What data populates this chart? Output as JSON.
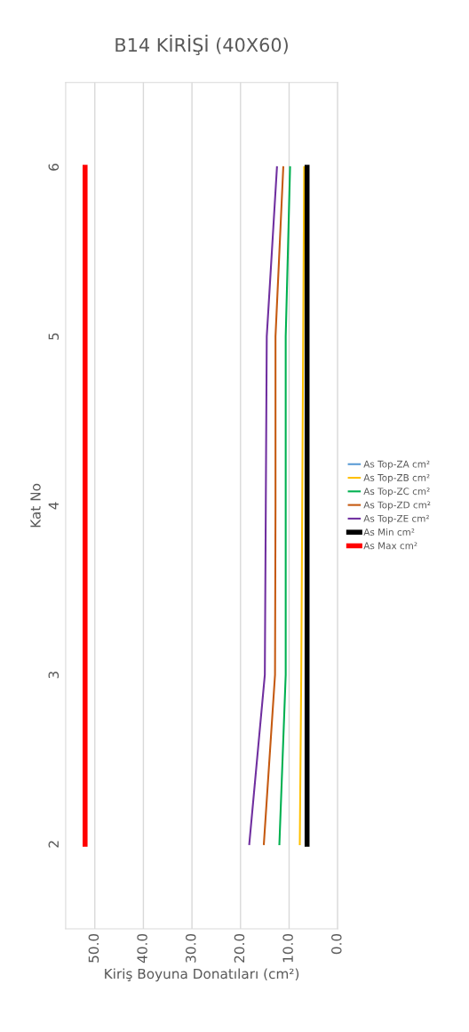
{
  "chart_data": {
    "type": "line",
    "title": "B14 KİRİŞİ (40X60)",
    "xlabel": "Kiriş Boyuna Donatıları (cm²)",
    "ylabel": "Kat No",
    "orientation": "horizontal",
    "categories": [
      "6",
      "5",
      "4",
      "3",
      "2"
    ],
    "series": [
      {
        "name": "As Top-ZA cm²",
        "color": "#5b9bd5",
        "values": [
          null,
          null,
          null,
          null,
          null
        ]
      },
      {
        "name": "As Top-ZB cm²",
        "color": "#ffc000",
        "values": [
          6.9,
          7.1,
          7.3,
          7.5,
          7.8
        ]
      },
      {
        "name": "As Top-ZC cm²",
        "color": "#00b050",
        "values": [
          9.8,
          10.7,
          10.7,
          10.7,
          12.0
        ]
      },
      {
        "name": "As Top-ZD cm²",
        "color": "#c55a11",
        "values": [
          11.2,
          12.8,
          12.8,
          12.9,
          15.2
        ]
      },
      {
        "name": "As Top-ZE cm²",
        "color": "#7030a0",
        "values": [
          12.5,
          14.6,
          14.8,
          15.0,
          18.2
        ]
      },
      {
        "name": "As Min cm²",
        "color": "#000000",
        "values": [
          6.3,
          6.3,
          6.3,
          6.3,
          6.3
        ]
      },
      {
        "name": "As Max cm²",
        "color": "#ff0000",
        "values": [
          52,
          52,
          52,
          52,
          52
        ]
      }
    ],
    "xlim": [
      56,
      0
    ],
    "xticks": [
      {
        "value": 50,
        "label": "50.0"
      },
      {
        "value": 40,
        "label": "40.0"
      },
      {
        "value": 30,
        "label": "30.0"
      },
      {
        "value": 20,
        "label": "20.0"
      },
      {
        "value": 10,
        "label": "10.0"
      },
      {
        "value": 0,
        "label": "0.0"
      }
    ],
    "grid": "x",
    "legend": "right",
    "marker": "none",
    "line_style": "solid"
  }
}
